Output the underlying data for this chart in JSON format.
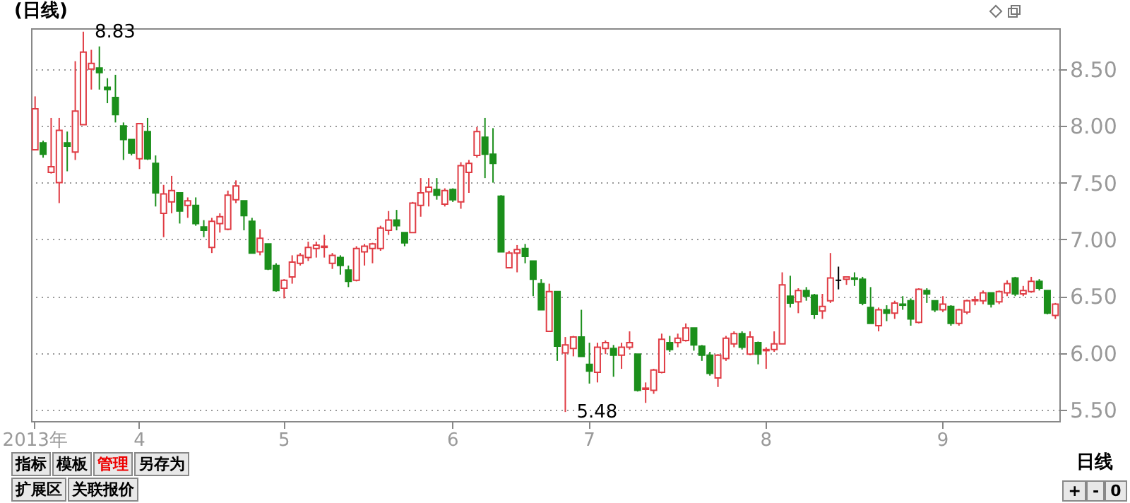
{
  "chart_data": {
    "type": "candlestick",
    "title": "(日线)",
    "categories": [
      "2013年",
      null,
      null,
      null,
      null,
      null,
      null,
      null,
      null,
      null,
      null,
      null,
      null,
      "4",
      null,
      null,
      null,
      null,
      null,
      null,
      null,
      null,
      null,
      null,
      null,
      null,
      null,
      null,
      null,
      null,
      null,
      "5",
      null,
      null,
      null,
      null,
      null,
      null,
      null,
      null,
      null,
      null,
      null,
      null,
      null,
      null,
      null,
      null,
      null,
      null,
      null,
      null,
      "6",
      null,
      null,
      null,
      null,
      null,
      null,
      null,
      null,
      null,
      null,
      null,
      null,
      null,
      null,
      null,
      null,
      "7",
      null,
      null,
      null,
      null,
      null,
      null,
      null,
      null,
      null,
      null,
      null,
      null,
      null,
      null,
      null,
      null,
      null,
      null,
      null,
      null,
      null,
      "8",
      null,
      null,
      null,
      null,
      null,
      null,
      null,
      null,
      null,
      null,
      null,
      null,
      null,
      null,
      null,
      null,
      null,
      null,
      null,
      null,
      null,
      "9",
      null,
      null,
      null,
      null,
      null,
      null,
      null,
      null,
      null,
      null,
      null,
      null,
      null,
      null
    ],
    "ohlc": [
      [
        7.79,
        8.26,
        7.79,
        8.15
      ],
      [
        7.85,
        7.87,
        7.72,
        7.75
      ],
      [
        7.59,
        8.07,
        7.58,
        7.64
      ],
      [
        7.5,
        8.07,
        7.32,
        7.96
      ],
      [
        7.85,
        7.95,
        7.6,
        7.82
      ],
      [
        7.77,
        8.57,
        7.7,
        8.13
      ],
      [
        8.01,
        8.83,
        8.01,
        8.65
      ],
      [
        8.5,
        8.67,
        8.32,
        8.55
      ],
      [
        8.51,
        8.7,
        8.32,
        8.47
      ],
      [
        8.34,
        8.42,
        8.2,
        8.32
      ],
      [
        8.25,
        8.45,
        8.03,
        8.1
      ],
      [
        8.0,
        8.03,
        7.7,
        7.88
      ],
      [
        7.88,
        7.88,
        7.74,
        7.76
      ],
      [
        7.71,
        8.02,
        7.62,
        8.02
      ],
      [
        7.95,
        8.07,
        7.7,
        7.71
      ],
      [
        7.67,
        7.74,
        7.29,
        7.41
      ],
      [
        7.23,
        7.48,
        7.02,
        7.4
      ],
      [
        7.33,
        7.56,
        7.23,
        7.43
      ],
      [
        7.41,
        7.41,
        7.14,
        7.25
      ],
      [
        7.3,
        7.37,
        7.19,
        7.34
      ],
      [
        7.3,
        7.37,
        7.12,
        7.14
      ],
      [
        7.11,
        7.17,
        7.02,
        7.08
      ],
      [
        6.93,
        7.19,
        6.88,
        7.16
      ],
      [
        7.14,
        7.23,
        7.06,
        7.2
      ],
      [
        7.09,
        7.43,
        7.08,
        7.39
      ],
      [
        7.35,
        7.52,
        7.32,
        7.47
      ],
      [
        7.34,
        7.34,
        7.08,
        7.21
      ],
      [
        7.16,
        7.19,
        6.88,
        6.88
      ],
      [
        6.89,
        7.09,
        6.86,
        7.01
      ],
      [
        6.96,
        6.96,
        6.73,
        6.74
      ],
      [
        6.77,
        6.79,
        6.54,
        6.55
      ],
      [
        6.57,
        6.65,
        6.48,
        6.64
      ],
      [
        6.67,
        6.86,
        6.61,
        6.8
      ],
      [
        6.79,
        6.88,
        6.77,
        6.86
      ],
      [
        6.84,
        6.98,
        6.81,
        6.93
      ],
      [
        6.92,
        6.98,
        6.84,
        6.95
      ],
      [
        6.93,
        7.04,
        6.84,
        6.94
      ],
      [
        6.79,
        6.88,
        6.74,
        6.86
      ],
      [
        6.84,
        6.86,
        6.69,
        6.77
      ],
      [
        6.73,
        6.77,
        6.58,
        6.63
      ],
      [
        6.64,
        6.94,
        6.63,
        6.92
      ],
      [
        6.89,
        6.96,
        6.77,
        6.94
      ],
      [
        6.92,
        6.97,
        6.79,
        6.96
      ],
      [
        6.92,
        7.12,
        6.9,
        7.1
      ],
      [
        7.08,
        7.25,
        7.04,
        7.17
      ],
      [
        7.17,
        7.26,
        7.08,
        7.12
      ],
      [
        7.06,
        7.06,
        6.94,
        6.97
      ],
      [
        7.06,
        7.33,
        7.06,
        7.32
      ],
      [
        7.3,
        7.54,
        7.2,
        7.41
      ],
      [
        7.42,
        7.54,
        7.29,
        7.46
      ],
      [
        7.44,
        7.54,
        7.35,
        7.39
      ],
      [
        7.31,
        7.45,
        7.29,
        7.43
      ],
      [
        7.44,
        7.45,
        7.33,
        7.35
      ],
      [
        7.33,
        7.68,
        7.27,
        7.65
      ],
      [
        7.59,
        7.7,
        7.41,
        7.67
      ],
      [
        7.74,
        7.99,
        7.72,
        7.95
      ],
      [
        7.9,
        8.07,
        7.54,
        7.75
      ],
      [
        7.75,
        7.98,
        7.5,
        7.67
      ],
      [
        7.38,
        7.39,
        6.89,
        6.89
      ],
      [
        6.75,
        6.9,
        6.75,
        6.88
      ],
      [
        6.88,
        6.95,
        6.71,
        6.91
      ],
      [
        6.92,
        6.96,
        6.79,
        6.85
      ],
      [
        6.81,
        6.81,
        6.5,
        6.65
      ],
      [
        6.61,
        6.65,
        6.38,
        6.38
      ],
      [
        6.19,
        6.61,
        6.19,
        6.54
      ],
      [
        6.54,
        6.54,
        5.93,
        6.06
      ],
      [
        6.0,
        6.14,
        5.48,
        6.07
      ],
      [
        6.04,
        6.15,
        5.97,
        6.14
      ],
      [
        6.14,
        6.38,
        5.97,
        5.97
      ],
      [
        5.9,
        6.09,
        5.73,
        5.84
      ],
      [
        5.83,
        6.09,
        5.74,
        6.05
      ],
      [
        6.04,
        6.11,
        5.99,
        6.09
      ],
      [
        6.04,
        6.07,
        5.79,
        5.98
      ],
      [
        5.98,
        6.09,
        5.86,
        6.05
      ],
      [
        6.05,
        6.19,
        6.03,
        6.09
      ],
      [
        5.99,
        5.99,
        5.66,
        5.67
      ],
      [
        5.68,
        5.74,
        5.56,
        5.69
      ],
      [
        5.67,
        5.86,
        5.64,
        5.85
      ],
      [
        5.83,
        6.17,
        5.82,
        6.12
      ],
      [
        6.09,
        6.15,
        6.01,
        6.03
      ],
      [
        6.09,
        6.17,
        6.05,
        6.13
      ],
      [
        6.11,
        6.26,
        6.1,
        6.22
      ],
      [
        6.22,
        6.22,
        6.02,
        6.07
      ],
      [
        6.06,
        6.07,
        5.93,
        5.98
      ],
      [
        5.98,
        6.01,
        5.8,
        5.82
      ],
      [
        5.78,
        5.99,
        5.7,
        5.98
      ],
      [
        5.95,
        6.15,
        5.93,
        6.13
      ],
      [
        6.08,
        6.19,
        6.05,
        6.17
      ],
      [
        6.17,
        6.19,
        6.03,
        6.05
      ],
      [
        5.99,
        6.19,
        5.98,
        6.14
      ],
      [
        6.09,
        6.1,
        5.9,
        5.99
      ],
      [
        6.02,
        6.05,
        5.86,
        6.03
      ],
      [
        6.03,
        6.19,
        6.01,
        6.08
      ],
      [
        6.08,
        6.71,
        6.08,
        6.6
      ],
      [
        6.5,
        6.68,
        6.4,
        6.44
      ],
      [
        6.45,
        6.57,
        6.35,
        6.55
      ],
      [
        6.55,
        6.58,
        6.46,
        6.5
      ],
      [
        6.51,
        6.52,
        6.3,
        6.34
      ],
      [
        6.37,
        6.52,
        6.3,
        6.41
      ],
      [
        6.46,
        6.88,
        6.44,
        6.66
      ],
      [
        6.64,
        6.76,
        6.56,
        6.64
      ],
      [
        6.65,
        6.67,
        6.6,
        6.67
      ],
      [
        6.66,
        6.71,
        6.59,
        6.65
      ],
      [
        6.65,
        6.67,
        6.42,
        6.44
      ],
      [
        6.4,
        6.58,
        6.26,
        6.26
      ],
      [
        6.24,
        6.4,
        6.19,
        6.38
      ],
      [
        6.38,
        6.42,
        6.28,
        6.35
      ],
      [
        6.35,
        6.46,
        6.3,
        6.44
      ],
      [
        6.43,
        6.5,
        6.38,
        6.42
      ],
      [
        6.46,
        6.48,
        6.24,
        6.3
      ],
      [
        6.27,
        6.57,
        6.26,
        6.56
      ],
      [
        6.55,
        6.57,
        6.44,
        6.52
      ],
      [
        6.46,
        6.46,
        6.36,
        6.38
      ],
      [
        6.38,
        6.5,
        6.36,
        6.43
      ],
      [
        6.41,
        6.42,
        6.24,
        6.26
      ],
      [
        6.26,
        6.39,
        6.24,
        6.38
      ],
      [
        6.36,
        6.47,
        6.34,
        6.46
      ],
      [
        6.46,
        6.5,
        6.42,
        6.47
      ],
      [
        6.46,
        6.55,
        6.43,
        6.53
      ],
      [
        6.53,
        6.53,
        6.4,
        6.43
      ],
      [
        6.45,
        6.55,
        6.43,
        6.54
      ],
      [
        6.53,
        6.64,
        6.5,
        6.61
      ],
      [
        6.66,
        6.67,
        6.5,
        6.52
      ],
      [
        6.52,
        6.59,
        6.5,
        6.55
      ],
      [
        6.54,
        6.67,
        6.53,
        6.63
      ],
      [
        6.63,
        6.65,
        6.55,
        6.57
      ],
      [
        6.55,
        6.55,
        6.34,
        6.35
      ],
      [
        6.33,
        6.44,
        6.3,
        6.43
      ]
    ],
    "colors": [
      "#e03c44",
      "#1b8f1b",
      "#e03c44",
      "#e03c44",
      "#1b8f1b",
      "#e03c44",
      "#e03c44",
      "#e03c44",
      "#1b8f1b",
      "#1b8f1b",
      "#1b8f1b",
      "#1b8f1b",
      "#1b8f1b",
      "#e03c44",
      "#1b8f1b",
      "#1b8f1b",
      "#e03c44",
      "#e03c44",
      "#1b8f1b",
      "#e03c44",
      "#1b8f1b",
      "#1b8f1b",
      "#e03c44",
      "#e03c44",
      "#e03c44",
      "#e03c44",
      "#1b8f1b",
      "#1b8f1b",
      "#e03c44",
      "#1b8f1b",
      "#1b8f1b",
      "#e03c44",
      "#e03c44",
      "#e03c44",
      "#e03c44",
      "#e03c44",
      "#e03c44",
      "#e03c44",
      "#1b8f1b",
      "#1b8f1b",
      "#e03c44",
      "#e03c44",
      "#e03c44",
      "#e03c44",
      "#e03c44",
      "#1b8f1b",
      "#1b8f1b",
      "#e03c44",
      "#e03c44",
      "#e03c44",
      "#1b8f1b",
      "#e03c44",
      "#1b8f1b",
      "#e03c44",
      "#e03c44",
      "#e03c44",
      "#1b8f1b",
      "#1b8f1b",
      "#1b8f1b",
      "#e03c44",
      "#e03c44",
      "#1b8f1b",
      "#1b8f1b",
      "#1b8f1b",
      "#e03c44",
      "#1b8f1b",
      "#e03c44",
      "#e03c44",
      "#1b8f1b",
      "#1b8f1b",
      "#e03c44",
      "#e03c44",
      "#1b8f1b",
      "#e03c44",
      "#e03c44",
      "#1b8f1b",
      "#e03c44",
      "#e03c44",
      "#e03c44",
      "#1b8f1b",
      "#e03c44",
      "#e03c44",
      "#1b8f1b",
      "#1b8f1b",
      "#1b8f1b",
      "#e03c44",
      "#e03c44",
      "#e03c44",
      "#1b8f1b",
      "#e03c44",
      "#1b8f1b",
      "#e03c44",
      "#e03c44",
      "#e03c44",
      "#1b8f1b",
      "#e03c44",
      "#1b8f1b",
      "#1b8f1b",
      "#e03c44",
      "#e03c44",
      "#000000",
      "#e03c44",
      "#1b8f1b",
      "#1b8f1b",
      "#1b8f1b",
      "#e03c44",
      "#1b8f1b",
      "#e03c44",
      "#1b8f1b",
      "#1b8f1b",
      "#e03c44",
      "#1b8f1b",
      "#1b8f1b",
      "#e03c44",
      "#1b8f1b",
      "#e03c44",
      "#e03c44",
      "#e03c44",
      "#e03c44",
      "#1b8f1b",
      "#e03c44",
      "#e03c44",
      "#1b8f1b",
      "#e03c44",
      "#e03c44",
      "#1b8f1b",
      "#1b8f1b",
      "#e03c44"
    ],
    "ylim": [
      5.4,
      8.86
    ],
    "yticks": [
      {
        "value": 5.5,
        "label": "5.50"
      },
      {
        "value": 6,
        "label": "6.00"
      },
      {
        "value": 6.5,
        "label": "6.50"
      },
      {
        "value": 7,
        "label": "7.00"
      },
      {
        "value": 7.5,
        "label": "7.50"
      },
      {
        "value": 8,
        "label": "8.00"
      },
      {
        "value": 8.5,
        "label": "8.50"
      }
    ],
    "grid": "y",
    "annotations": [
      "8.83",
      "5.48",
      "指标",
      "模板",
      "管理",
      "另存为",
      "扩展区",
      "关联报价",
      "日线",
      "+",
      "-",
      "0"
    ]
  }
}
